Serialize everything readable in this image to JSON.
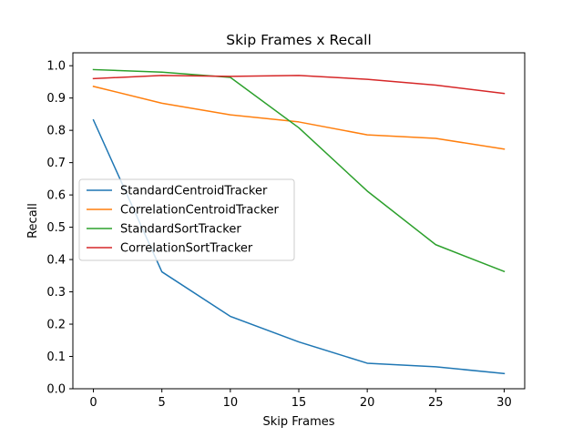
{
  "chart_data": {
    "type": "line",
    "title": "Skip Frames x Recall",
    "xlabel": "Skip Frames",
    "ylabel": "Recall",
    "x": [
      0,
      5,
      10,
      15,
      20,
      25,
      30
    ],
    "xlim": [
      -1.5,
      31.5
    ],
    "ylim": [
      0.0,
      1.04
    ],
    "xticks": [
      0,
      5,
      10,
      15,
      20,
      25,
      30
    ],
    "yticks": [
      0.0,
      0.1,
      0.2,
      0.3,
      0.4,
      0.5,
      0.6,
      0.7,
      0.8,
      0.9,
      1.0
    ],
    "grid": false,
    "legend_position": "center-left",
    "series": [
      {
        "name": "StandardCentroidTracker",
        "color": "#1f77b4",
        "values": [
          0.832,
          0.362,
          0.224,
          0.145,
          0.079,
          0.068,
          0.047
        ]
      },
      {
        "name": "CorrelationCentroidTracker",
        "color": "#ff7f0e",
        "values": [
          0.936,
          0.884,
          0.848,
          0.826,
          0.786,
          0.775,
          0.742
        ]
      },
      {
        "name": "StandardSortTracker",
        "color": "#2ca02c",
        "values": [
          0.988,
          0.98,
          0.964,
          0.808,
          0.612,
          0.446,
          0.363
        ]
      },
      {
        "name": "CorrelationSortTracker",
        "color": "#d62728",
        "values": [
          0.96,
          0.97,
          0.967,
          0.97,
          0.958,
          0.94,
          0.914
        ]
      }
    ]
  }
}
